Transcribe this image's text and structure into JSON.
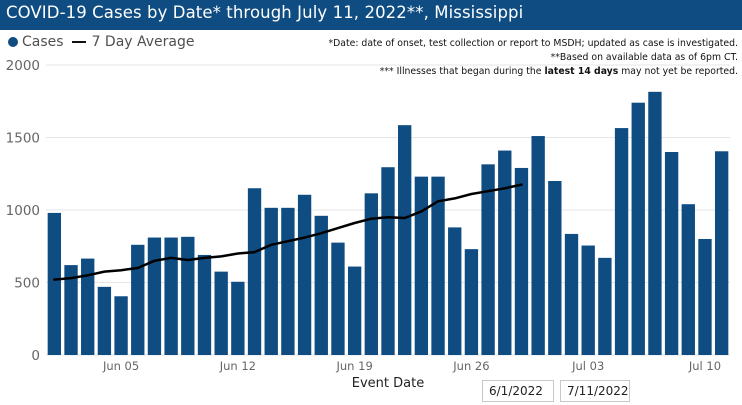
{
  "title": "COVID-19 Cases by Date* through July 11, 2022**, Mississippi",
  "legend": {
    "cases": "Cases",
    "average": "7 Day Average"
  },
  "notes": {
    "line1": "*Date: date of onset, test collection or report to MSDH; updated as case is investigated.",
    "line2": "**Based on available data as of 6pm CT.",
    "line3_prefix": "*** Illnesses that began during the ",
    "line3_bold": "latest 14 days",
    "line3_suffix": " may not yet be reported."
  },
  "filters": {
    "start_date": "6/1/2022",
    "end_date": "7/11/2022"
  },
  "colors": {
    "bar": "#0f4c81",
    "line": "#000000",
    "grid": "#e6e6e6",
    "axis_text": "#666666"
  },
  "chart_data": {
    "type": "bar",
    "xlabel": "Event Date",
    "ylabel": "",
    "ylim": [
      0,
      2000
    ],
    "yticks": [
      0,
      500,
      1000,
      1500,
      2000
    ],
    "grid": true,
    "categories": [
      "Jun 01",
      "Jun 02",
      "Jun 03",
      "Jun 04",
      "Jun 05",
      "Jun 06",
      "Jun 07",
      "Jun 08",
      "Jun 09",
      "Jun 10",
      "Jun 11",
      "Jun 12",
      "Jun 13",
      "Jun 14",
      "Jun 15",
      "Jun 16",
      "Jun 17",
      "Jun 18",
      "Jun 19",
      "Jun 20",
      "Jun 21",
      "Jun 22",
      "Jun 23",
      "Jun 24",
      "Jun 25",
      "Jun 26",
      "Jun 27",
      "Jun 28",
      "Jun 29",
      "Jun 30",
      "Jul 01",
      "Jul 02",
      "Jul 03",
      "Jul 04",
      "Jul 05",
      "Jul 06",
      "Jul 07",
      "Jul 08",
      "Jul 09",
      "Jul 10",
      "Jul 11"
    ],
    "tick_labels": [
      {
        "index": 4,
        "label": "Jun 05"
      },
      {
        "index": 11,
        "label": "Jun 12"
      },
      {
        "index": 18,
        "label": "Jun 19"
      },
      {
        "index": 25,
        "label": "Jun 26"
      },
      {
        "index": 32,
        "label": "Jul 03"
      },
      {
        "index": 39,
        "label": "Jul 10"
      }
    ],
    "series": [
      {
        "name": "Cases",
        "type": "bar",
        "values": [
          980,
          620,
          665,
          470,
          405,
          760,
          810,
          810,
          815,
          690,
          575,
          505,
          1150,
          1015,
          1015,
          1105,
          960,
          775,
          610,
          1115,
          1295,
          1585,
          1230,
          1230,
          880,
          730,
          1315,
          1410,
          1290,
          1510,
          1200,
          835,
          755,
          670,
          1565,
          1740,
          1815,
          1400,
          1040,
          800,
          1405
        ]
      },
      {
        "name": "7 Day Average",
        "type": "line",
        "values": [
          520,
          530,
          550,
          575,
          585,
          600,
          650,
          670,
          655,
          670,
          680,
          700,
          710,
          760,
          785,
          810,
          840,
          875,
          910,
          940,
          950,
          945,
          990,
          1060,
          1080,
          1110,
          1130,
          1150,
          1175,
          null,
          null,
          null,
          null,
          null,
          null,
          null,
          null,
          null,
          null,
          null,
          null
        ]
      }
    ]
  }
}
